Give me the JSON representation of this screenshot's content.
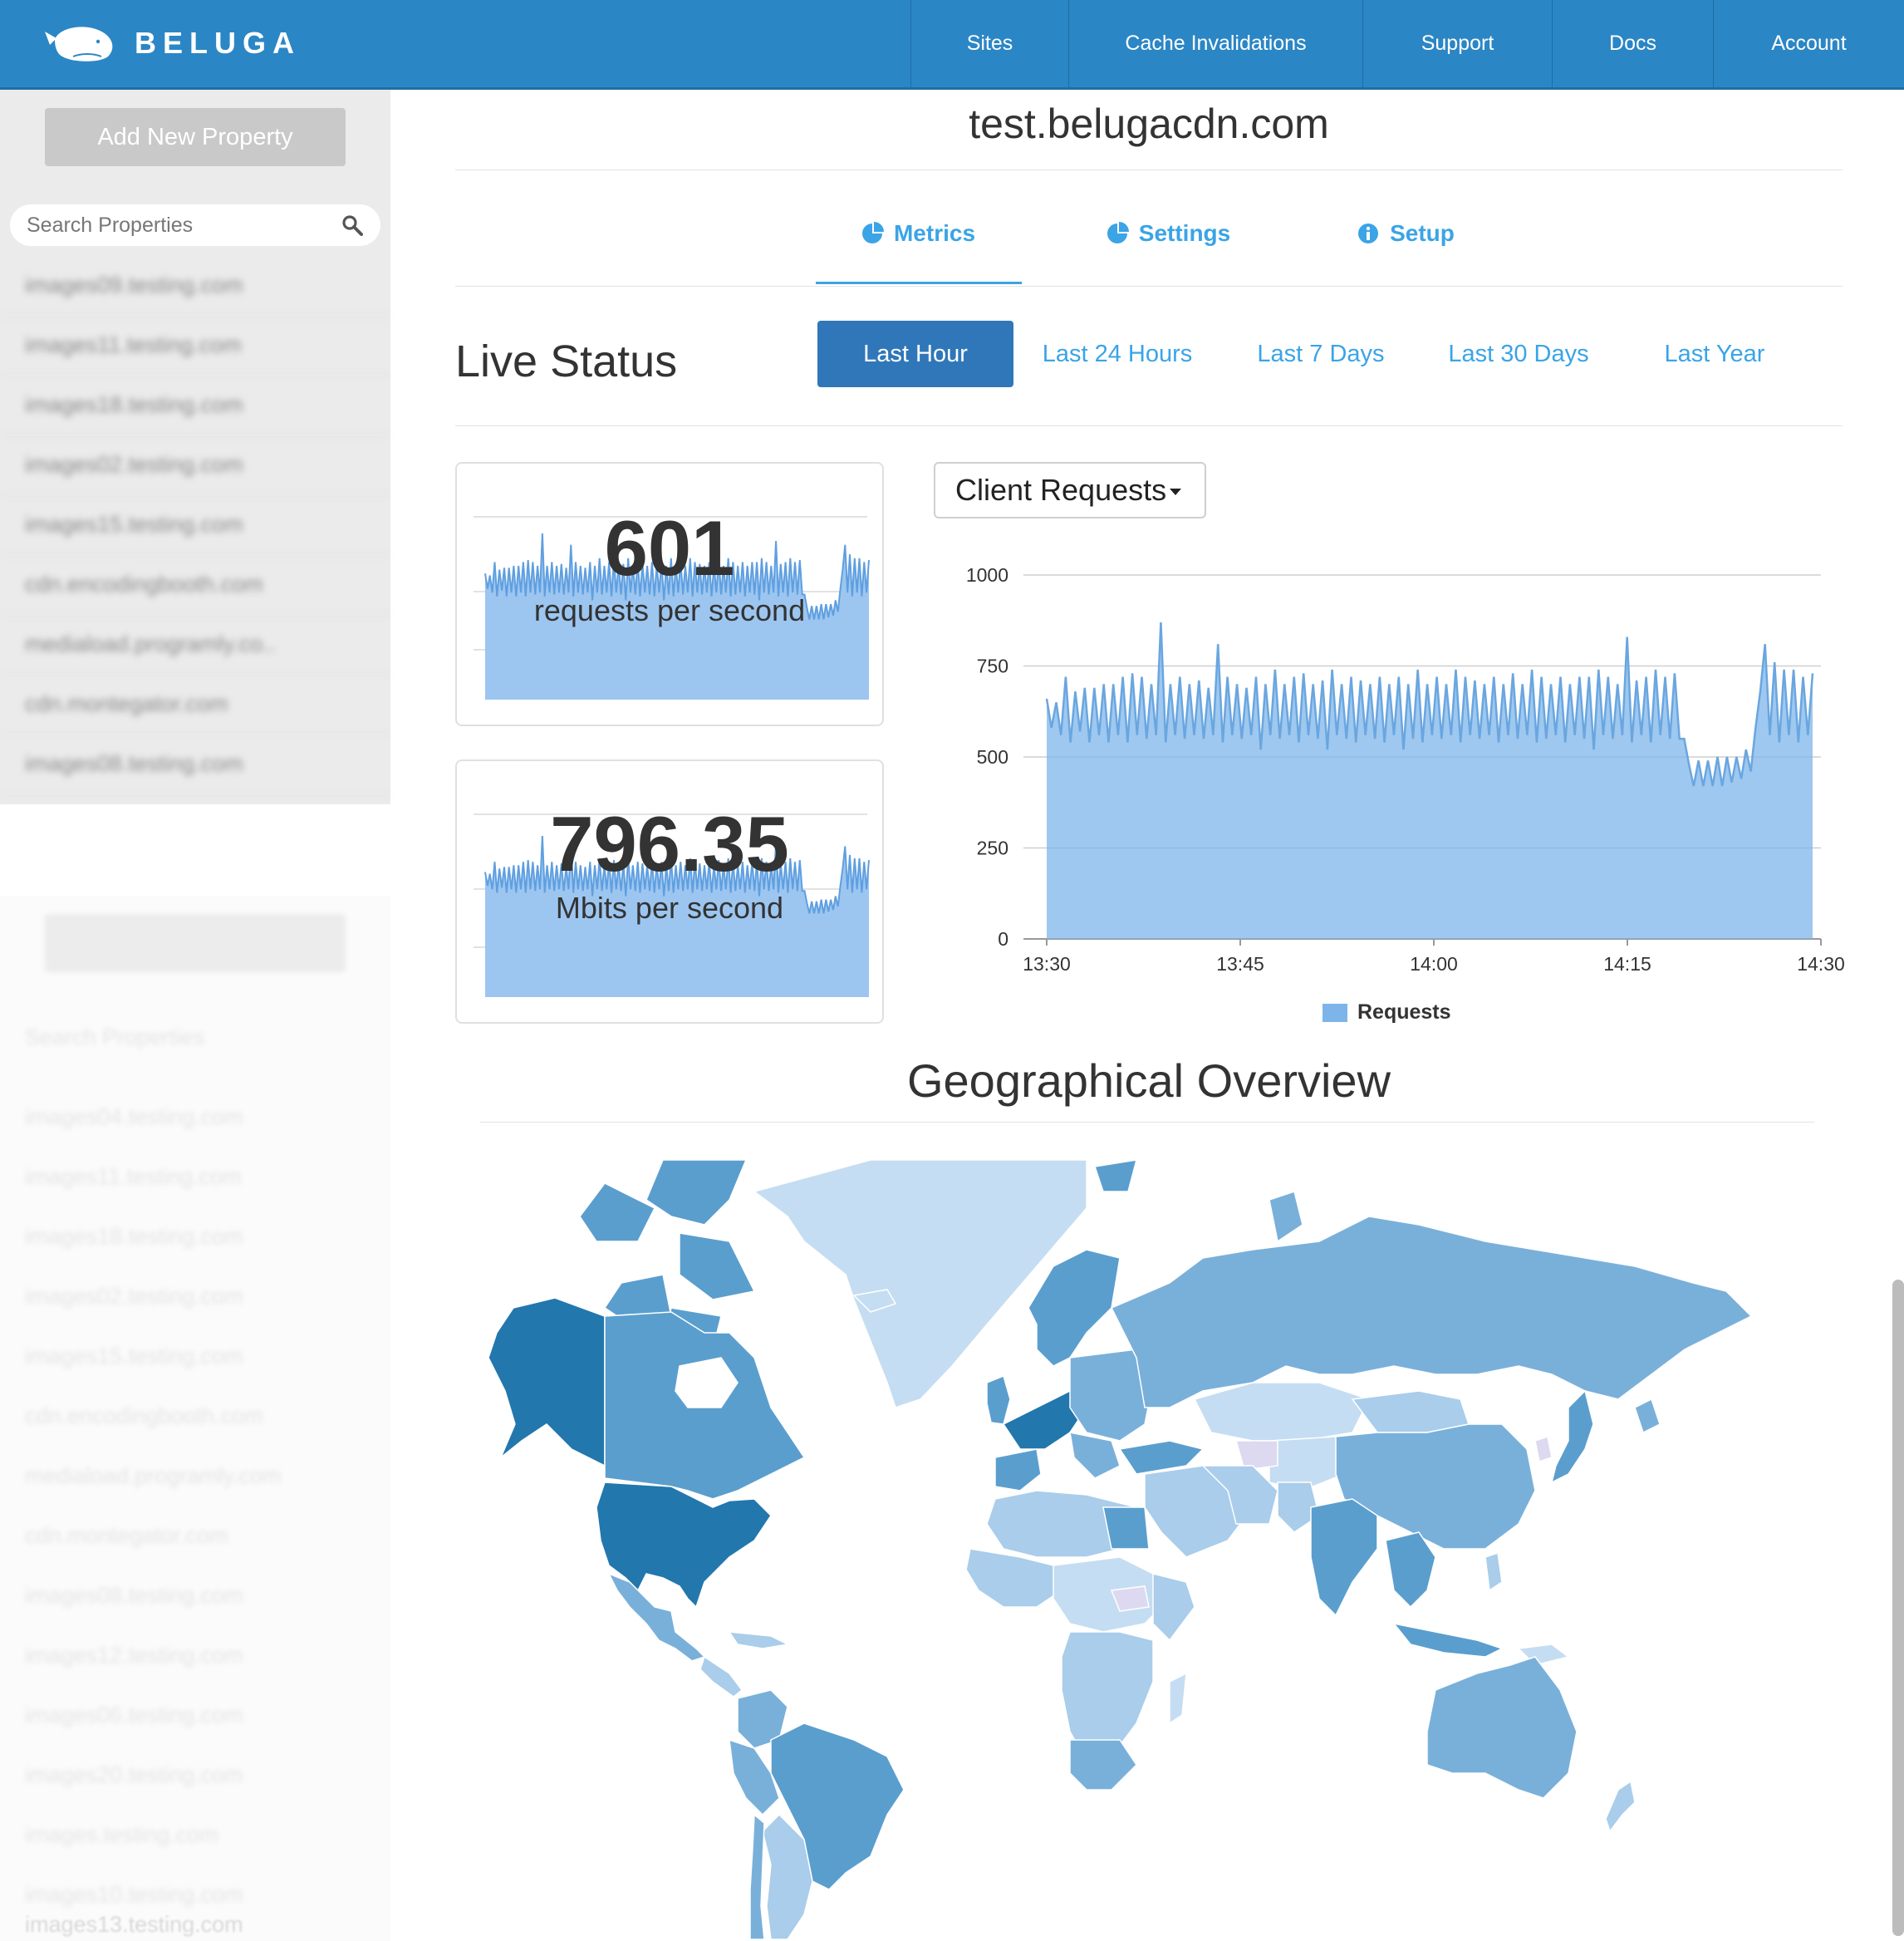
{
  "header": {
    "brand": "BELUGA",
    "nav": [
      "Sites",
      "Cache Invalidations",
      "Support",
      "Docs",
      "Account"
    ]
  },
  "sidebar": {
    "add_button": "Add New Property",
    "search_placeholder": "Search Properties",
    "properties": [
      "images09.testing.com",
      "images11.testing.com",
      "images18.testing.com",
      "images02.testing.com",
      "images15.testing.com",
      "cdn.encodingbooth.com",
      "mediaload.programly.co..",
      "cdn.montegator.com",
      "images08.testing.com"
    ],
    "faded_properties": [
      "images04.testing.com",
      "images11.testing.com",
      "images18.testing.com",
      "images02.testing.com",
      "images15.testing.com",
      "cdn.encodingbooth.com",
      "mediaload.programly.com",
      "cdn.montegator.com",
      "images08.testing.com",
      "images12.testing.com",
      "images06.testing.com",
      "images20.testing.com",
      "images.testing.com",
      "images10.testing.com"
    ],
    "last_property": "images13.testing.com"
  },
  "site": {
    "title": "test.belugacdn.com"
  },
  "tabs": [
    {
      "label": "Metrics",
      "icon": "pie-chart-icon",
      "active": true
    },
    {
      "label": "Settings",
      "icon": "pie-chart-icon",
      "active": false
    },
    {
      "label": "Setup",
      "icon": "info-icon",
      "active": false
    }
  ],
  "live_status": {
    "title": "Live Status",
    "ranges": [
      "Last Hour",
      "Last 24 Hours",
      "Last 7 Days",
      "Last 30 Days",
      "Last Year"
    ],
    "selected_range": "Last Hour"
  },
  "stats": {
    "requests_value": "601",
    "requests_label": "requests per second",
    "bandwidth_value": "796.35",
    "bandwidth_label": "Mbits per second"
  },
  "chart_select": {
    "selected": "Client Requests"
  },
  "chart_data": {
    "type": "area",
    "title": "",
    "xlabel": "",
    "ylabel": "",
    "x_ticks": [
      "13:30",
      "13:45",
      "14:00",
      "14:15",
      "14:30"
    ],
    "y_ticks": [
      0,
      250,
      500,
      750,
      1000
    ],
    "ylim": [
      0,
      1000
    ],
    "legend": "bottom-center",
    "grid": true,
    "series": [
      {
        "name": "Requests",
        "color": "#7db5ea",
        "values": [
          660,
          580,
          650,
          560,
          720,
          540,
          680,
          570,
          690,
          540,
          690,
          560,
          700,
          540,
          700,
          560,
          720,
          540,
          730,
          560,
          720,
          550,
          700,
          560,
          870,
          540,
          700,
          560,
          720,
          550,
          700,
          560,
          710,
          550,
          690,
          560,
          810,
          540,
          720,
          560,
          700,
          550,
          690,
          560,
          720,
          520,
          700,
          560,
          740,
          550,
          700,
          560,
          720,
          540,
          730,
          560,
          700,
          550,
          710,
          520,
          740,
          560,
          700,
          550,
          720,
          540,
          710,
          560,
          700,
          550,
          720,
          540,
          700,
          560,
          720,
          520,
          700,
          550,
          740,
          540,
          700,
          560,
          720,
          550,
          700,
          560,
          740,
          540,
          720,
          560,
          710,
          550,
          700,
          560,
          720,
          540,
          700,
          560,
          730,
          550,
          700,
          560,
          740,
          540,
          720,
          550,
          700,
          560,
          720,
          540,
          700,
          560,
          720,
          550,
          720,
          520,
          740,
          560,
          720,
          550,
          700,
          560,
          830,
          540,
          710,
          560,
          720,
          540,
          740,
          560,
          720,
          550,
          730,
          550,
          550,
          480,
          420,
          490,
          420,
          490,
          420,
          500,
          420,
          500,
          430,
          500,
          440,
          520,
          460,
          580,
          680,
          810,
          560,
          760,
          540,
          740,
          560,
          740,
          540,
          720,
          560,
          730
        ]
      }
    ]
  },
  "geo": {
    "title": "Geographical Overview",
    "shades": {
      "darkest": "#2277ad",
      "dark": "#5a9ece",
      "medium": "#79b0da",
      "light": "#a9cdea",
      "lightest": "#c5ddf2",
      "none": "#ddd9f0"
    }
  }
}
